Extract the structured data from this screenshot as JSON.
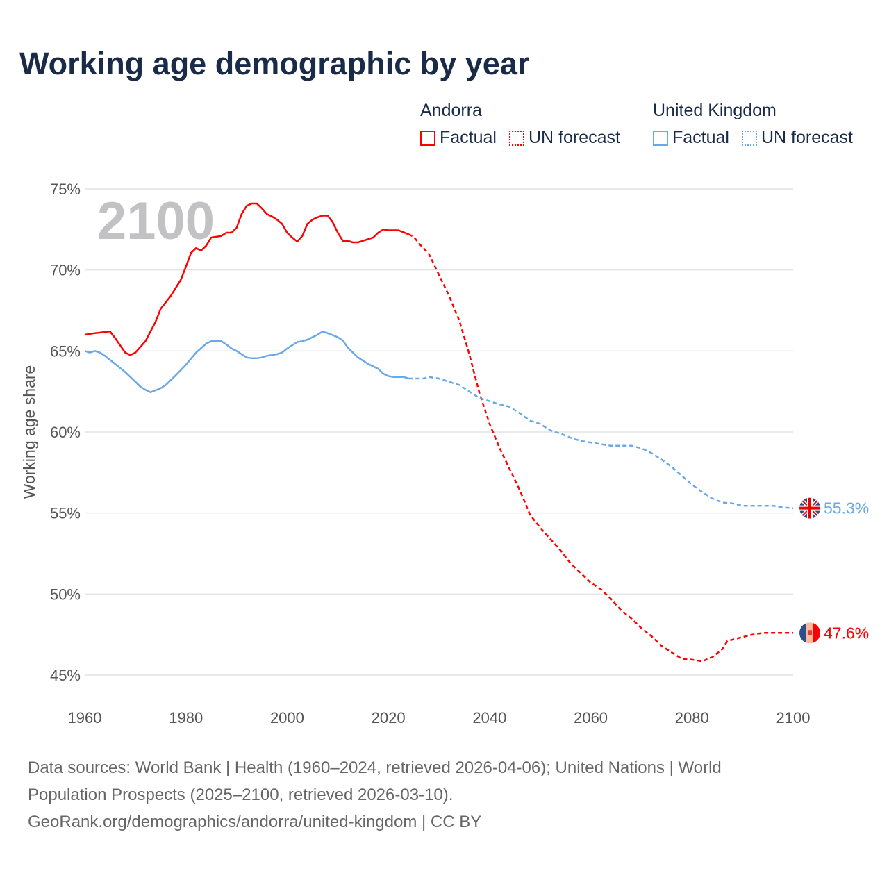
{
  "title": "Working age demographic by year",
  "legend": [
    {
      "country": "Andorra",
      "factual": "Factual",
      "forecast": "UN forecast",
      "color": "#ff0000"
    },
    {
      "country": "United Kingdom",
      "factual": "Factual",
      "forecast": "UN forecast",
      "color": "#6aa8e8"
    }
  ],
  "footer": [
    "Data sources: World Bank | Health (1960–2024, retrieved 2026-04-06); United Nations | World",
    "Population Prospects (2025–2100, retrieved 2026-03-10).",
    "GeoRank.org/demographics/andorra/united-kingdom | CC BY"
  ],
  "chart_data": {
    "type": "line",
    "title": "Working age demographic by year",
    "ylabel": "Working age share",
    "xlabel": "",
    "current_year_label": "2100",
    "xlim": [
      1960,
      2100
    ],
    "ylim": [
      45,
      75
    ],
    "xticks": [
      "1960",
      "1980",
      "2000",
      "2020",
      "2040",
      "2060",
      "2080",
      "2100"
    ],
    "yticks": [
      "45%",
      "50%",
      "55%",
      "60%",
      "65%",
      "70%",
      "75%"
    ],
    "grid": true,
    "series": [
      {
        "name": "Andorra",
        "color": "#ff0000",
        "end_label": "47.6%",
        "factual": [
          [
            1960,
            66.0
          ],
          [
            1962,
            66.1
          ],
          [
            1965,
            66.2
          ],
          [
            1966,
            65.8
          ],
          [
            1968,
            64.9
          ],
          [
            1969,
            64.75
          ],
          [
            1970,
            64.9
          ],
          [
            1972,
            65.6
          ],
          [
            1974,
            66.8
          ],
          [
            1975,
            67.6
          ],
          [
            1977,
            68.4
          ],
          [
            1979,
            69.4
          ],
          [
            1980,
            70.2
          ],
          [
            1981,
            71.05
          ],
          [
            1982,
            71.35
          ],
          [
            1983,
            71.2
          ],
          [
            1984,
            71.5
          ],
          [
            1985,
            72.0
          ],
          [
            1987,
            72.1
          ],
          [
            1988,
            72.3
          ],
          [
            1989,
            72.3
          ],
          [
            1990,
            72.6
          ],
          [
            1991,
            73.45
          ],
          [
            1992,
            73.95
          ],
          [
            1993,
            74.1
          ],
          [
            1994,
            74.1
          ],
          [
            1995,
            73.8
          ],
          [
            1996,
            73.45
          ],
          [
            1997,
            73.3
          ],
          [
            1998,
            73.1
          ],
          [
            1999,
            72.85
          ],
          [
            2000,
            72.3
          ],
          [
            2001,
            72.0
          ],
          [
            2002,
            71.75
          ],
          [
            2003,
            72.1
          ],
          [
            2004,
            72.85
          ],
          [
            2005,
            73.1
          ],
          [
            2006,
            73.25
          ],
          [
            2007,
            73.35
          ],
          [
            2008,
            73.35
          ],
          [
            2009,
            72.95
          ],
          [
            2010,
            72.3
          ],
          [
            2011,
            71.8
          ],
          [
            2012,
            71.8
          ],
          [
            2013,
            71.7
          ],
          [
            2014,
            71.7
          ],
          [
            2015,
            71.8
          ],
          [
            2017,
            72.0
          ],
          [
            2018,
            72.3
          ],
          [
            2019,
            72.5
          ],
          [
            2020,
            72.45
          ],
          [
            2022,
            72.45
          ],
          [
            2024,
            72.2
          ]
        ],
        "forecast": [
          [
            2024,
            72.2
          ],
          [
            2025,
            72.05
          ],
          [
            2026,
            71.65
          ],
          [
            2028,
            71.0
          ],
          [
            2030,
            69.7
          ],
          [
            2032,
            68.4
          ],
          [
            2034,
            66.9
          ],
          [
            2036,
            64.8
          ],
          [
            2038,
            62.4
          ],
          [
            2040,
            60.5
          ],
          [
            2042,
            59.0
          ],
          [
            2044,
            57.7
          ],
          [
            2046,
            56.4
          ],
          [
            2048,
            54.9
          ],
          [
            2050,
            54.1
          ],
          [
            2052,
            53.4
          ],
          [
            2054,
            52.7
          ],
          [
            2056,
            51.9
          ],
          [
            2058,
            51.3
          ],
          [
            2060,
            50.7
          ],
          [
            2062,
            50.3
          ],
          [
            2064,
            49.7
          ],
          [
            2066,
            49.0
          ],
          [
            2068,
            48.5
          ],
          [
            2070,
            47.9
          ],
          [
            2072,
            47.4
          ],
          [
            2074,
            46.8
          ],
          [
            2076,
            46.4
          ],
          [
            2078,
            46.0
          ],
          [
            2080,
            45.95
          ],
          [
            2082,
            45.85
          ],
          [
            2084,
            46.1
          ],
          [
            2086,
            46.6
          ],
          [
            2087,
            47.1
          ],
          [
            2090,
            47.35
          ],
          [
            2092,
            47.5
          ],
          [
            2094,
            47.6
          ],
          [
            2096,
            47.6
          ],
          [
            2100,
            47.6
          ]
        ]
      },
      {
        "name": "United Kingdom",
        "color": "#6aa8e8",
        "end_label": "55.3%",
        "factual": [
          [
            1960,
            65.0
          ],
          [
            1961,
            64.9
          ],
          [
            1962,
            65.0
          ],
          [
            1963,
            64.9
          ],
          [
            1964,
            64.7
          ],
          [
            1966,
            64.2
          ],
          [
            1968,
            63.7
          ],
          [
            1969,
            63.4
          ],
          [
            1970,
            63.1
          ],
          [
            1971,
            62.8
          ],
          [
            1972,
            62.6
          ],
          [
            1973,
            62.45
          ],
          [
            1975,
            62.7
          ],
          [
            1976,
            62.9
          ],
          [
            1978,
            63.5
          ],
          [
            1980,
            64.15
          ],
          [
            1982,
            64.9
          ],
          [
            1984,
            65.45
          ],
          [
            1985,
            65.6
          ],
          [
            1987,
            65.6
          ],
          [
            1988,
            65.4
          ],
          [
            1989,
            65.15
          ],
          [
            1990,
            65.0
          ],
          [
            1991,
            64.8
          ],
          [
            1992,
            64.6
          ],
          [
            1993,
            64.55
          ],
          [
            1994,
            64.55
          ],
          [
            1995,
            64.6
          ],
          [
            1996,
            64.7
          ],
          [
            1997,
            64.75
          ],
          [
            1998,
            64.8
          ],
          [
            1999,
            64.9
          ],
          [
            2000,
            65.15
          ],
          [
            2002,
            65.55
          ],
          [
            2003,
            65.6
          ],
          [
            2004,
            65.7
          ],
          [
            2005,
            65.85
          ],
          [
            2006,
            66.0
          ],
          [
            2007,
            66.2
          ],
          [
            2008,
            66.1
          ],
          [
            2010,
            65.85
          ],
          [
            2011,
            65.65
          ],
          [
            2012,
            65.2
          ],
          [
            2013,
            64.9
          ],
          [
            2014,
            64.6
          ],
          [
            2016,
            64.2
          ],
          [
            2018,
            63.9
          ],
          [
            2019,
            63.6
          ],
          [
            2020,
            63.45
          ],
          [
            2021,
            63.4
          ],
          [
            2023,
            63.4
          ],
          [
            2024,
            63.3
          ]
        ],
        "forecast": [
          [
            2024,
            63.3
          ],
          [
            2027,
            63.3
          ],
          [
            2028,
            63.4
          ],
          [
            2030,
            63.3
          ],
          [
            2032,
            63.1
          ],
          [
            2034,
            62.9
          ],
          [
            2036,
            62.5
          ],
          [
            2038,
            62.1
          ],
          [
            2040,
            61.9
          ],
          [
            2042,
            61.7
          ],
          [
            2044,
            61.55
          ],
          [
            2046,
            61.15
          ],
          [
            2048,
            60.7
          ],
          [
            2050,
            60.5
          ],
          [
            2052,
            60.1
          ],
          [
            2054,
            59.9
          ],
          [
            2056,
            59.65
          ],
          [
            2058,
            59.45
          ],
          [
            2060,
            59.35
          ],
          [
            2062,
            59.25
          ],
          [
            2064,
            59.15
          ],
          [
            2068,
            59.15
          ],
          [
            2070,
            59.0
          ],
          [
            2072,
            58.7
          ],
          [
            2074,
            58.3
          ],
          [
            2076,
            57.85
          ],
          [
            2078,
            57.3
          ],
          [
            2080,
            56.75
          ],
          [
            2082,
            56.3
          ],
          [
            2084,
            55.9
          ],
          [
            2086,
            55.65
          ],
          [
            2088,
            55.6
          ],
          [
            2090,
            55.45
          ],
          [
            2096,
            55.45
          ],
          [
            2098,
            55.35
          ],
          [
            2100,
            55.3
          ]
        ]
      }
    ]
  }
}
